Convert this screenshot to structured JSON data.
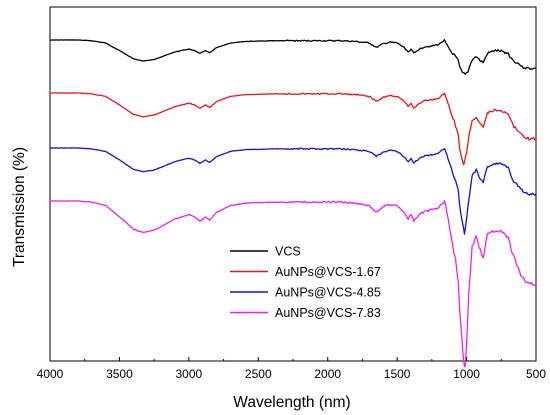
{
  "chart_data": {
    "type": "line",
    "title": "",
    "xlabel": "Wavelength (nm)",
    "ylabel": "Transmission (%)",
    "xlim": [
      4000,
      500
    ],
    "x_reversed": true,
    "xticks": [
      "4000",
      "3500",
      "3000",
      "2500",
      "2000",
      "1500",
      "1000",
      "500"
    ],
    "y_tick_labels": false,
    "grid": false,
    "legend_position": "lower-center",
    "series": [
      {
        "name": "VCS",
        "color": "#000000",
        "points": [
          [
            4000,
            22
          ],
          [
            3900,
            22
          ],
          [
            3800,
            22
          ],
          [
            3700,
            21.5
          ],
          [
            3600,
            20
          ],
          [
            3500,
            15
          ],
          [
            3400,
            9.5
          ],
          [
            3330,
            8
          ],
          [
            3250,
            9
          ],
          [
            3100,
            14
          ],
          [
            3000,
            16
          ],
          [
            2960,
            15
          ],
          [
            2920,
            13
          ],
          [
            2900,
            14
          ],
          [
            2880,
            15
          ],
          [
            2850,
            13.5
          ],
          [
            2800,
            17
          ],
          [
            2700,
            20
          ],
          [
            2600,
            21
          ],
          [
            2400,
            21.5
          ],
          [
            2200,
            21.5
          ],
          [
            2100,
            21.5
          ],
          [
            2000,
            21.5
          ],
          [
            1900,
            21.5
          ],
          [
            1800,
            21
          ],
          [
            1700,
            20
          ],
          [
            1650,
            17
          ],
          [
            1600,
            19.5
          ],
          [
            1550,
            20.5
          ],
          [
            1500,
            20
          ],
          [
            1450,
            17
          ],
          [
            1420,
            14
          ],
          [
            1400,
            16
          ],
          [
            1380,
            13
          ],
          [
            1340,
            16
          ],
          [
            1300,
            17.5
          ],
          [
            1250,
            18
          ],
          [
            1200,
            19
          ],
          [
            1160,
            22
          ],
          [
            1150,
            20
          ],
          [
            1110,
            14
          ],
          [
            1080,
            11
          ],
          [
            1060,
            8
          ],
          [
            1050,
            4
          ],
          [
            1030,
            0
          ],
          [
            1010,
            -1
          ],
          [
            990,
            1
          ],
          [
            960,
            9
          ],
          [
            930,
            11
          ],
          [
            900,
            8
          ],
          [
            880,
            7
          ],
          [
            850,
            13
          ],
          [
            800,
            15
          ],
          [
            750,
            14.5
          ],
          [
            700,
            13
          ],
          [
            680,
            10
          ],
          [
            660,
            8
          ],
          [
            640,
            7
          ],
          [
            620,
            6
          ],
          [
            600,
            4
          ],
          [
            550,
            3
          ],
          [
            500,
            3
          ]
        ]
      },
      {
        "name": "AuNPs@VCS-1.67",
        "color": "#e8161b",
        "points": [
          [
            4000,
            22
          ],
          [
            3900,
            22
          ],
          [
            3800,
            22
          ],
          [
            3700,
            21.5
          ],
          [
            3600,
            20
          ],
          [
            3500,
            15
          ],
          [
            3400,
            9.5
          ],
          [
            3330,
            8
          ],
          [
            3250,
            9
          ],
          [
            3100,
            14
          ],
          [
            3000,
            16
          ],
          [
            2960,
            15
          ],
          [
            2920,
            13
          ],
          [
            2900,
            14
          ],
          [
            2880,
            15
          ],
          [
            2850,
            13.5
          ],
          [
            2800,
            17
          ],
          [
            2700,
            20
          ],
          [
            2600,
            21
          ],
          [
            2400,
            21.5
          ],
          [
            2200,
            21.5
          ],
          [
            2100,
            21.5
          ],
          [
            2000,
            21.5
          ],
          [
            1900,
            21.5
          ],
          [
            1800,
            21
          ],
          [
            1700,
            20
          ],
          [
            1650,
            17
          ],
          [
            1600,
            19.5
          ],
          [
            1550,
            20.5
          ],
          [
            1500,
            20
          ],
          [
            1450,
            17
          ],
          [
            1420,
            14
          ],
          [
            1400,
            16
          ],
          [
            1380,
            13
          ],
          [
            1340,
            16
          ],
          [
            1300,
            17.5
          ],
          [
            1250,
            18
          ],
          [
            1200,
            19
          ],
          [
            1160,
            22
          ],
          [
            1150,
            20
          ],
          [
            1110,
            10
          ],
          [
            1080,
            3
          ],
          [
            1060,
            -3
          ],
          [
            1050,
            -10
          ],
          [
            1030,
            -18
          ],
          [
            1020,
            -20
          ],
          [
            1000,
            -13
          ],
          [
            980,
            -2
          ],
          [
            960,
            6
          ],
          [
            930,
            8
          ],
          [
            900,
            4
          ],
          [
            880,
            2
          ],
          [
            850,
            10
          ],
          [
            800,
            12
          ],
          [
            750,
            11.5
          ],
          [
            700,
            10
          ],
          [
            680,
            6
          ],
          [
            660,
            2
          ],
          [
            640,
            1
          ],
          [
            620,
            -1
          ],
          [
            600,
            -3
          ],
          [
            550,
            -5
          ],
          [
            500,
            -5
          ]
        ]
      },
      {
        "name": "AuNPs@VCS-4.85",
        "color": "#1414c8",
        "points": [
          [
            4000,
            22
          ],
          [
            3900,
            22
          ],
          [
            3800,
            22
          ],
          [
            3700,
            21.5
          ],
          [
            3600,
            20
          ],
          [
            3500,
            15
          ],
          [
            3400,
            9.5
          ],
          [
            3330,
            8
          ],
          [
            3250,
            9
          ],
          [
            3100,
            14
          ],
          [
            3000,
            16
          ],
          [
            2960,
            15
          ],
          [
            2920,
            13
          ],
          [
            2900,
            14
          ],
          [
            2880,
            15
          ],
          [
            2850,
            13.5
          ],
          [
            2800,
            17
          ],
          [
            2700,
            20
          ],
          [
            2600,
            21
          ],
          [
            2400,
            21.5
          ],
          [
            2200,
            21.5
          ],
          [
            2100,
            21.5
          ],
          [
            2000,
            21.5
          ],
          [
            1900,
            21.5
          ],
          [
            1800,
            21
          ],
          [
            1700,
            20
          ],
          [
            1650,
            17
          ],
          [
            1600,
            19.5
          ],
          [
            1550,
            20.5
          ],
          [
            1500,
            20
          ],
          [
            1450,
            17
          ],
          [
            1420,
            14
          ],
          [
            1400,
            16
          ],
          [
            1380,
            13
          ],
          [
            1340,
            16
          ],
          [
            1300,
            17.5
          ],
          [
            1250,
            18
          ],
          [
            1200,
            19
          ],
          [
            1160,
            22
          ],
          [
            1150,
            20
          ],
          [
            1110,
            10
          ],
          [
            1080,
            3
          ],
          [
            1060,
            -3
          ],
          [
            1050,
            -12
          ],
          [
            1030,
            -22
          ],
          [
            1015,
            -28
          ],
          [
            1000,
            -20
          ],
          [
            980,
            -6
          ],
          [
            960,
            6
          ],
          [
            930,
            9
          ],
          [
            900,
            4
          ],
          [
            880,
            2
          ],
          [
            850,
            11
          ],
          [
            800,
            13
          ],
          [
            750,
            12.5
          ],
          [
            700,
            11
          ],
          [
            680,
            6
          ],
          [
            660,
            2
          ],
          [
            640,
            1
          ],
          [
            620,
            -1
          ],
          [
            600,
            -3
          ],
          [
            550,
            -5
          ],
          [
            500,
            -5
          ]
        ]
      },
      {
        "name": "AuNPs@VCS-7.83",
        "color": "#ee22ee",
        "points": [
          [
            4000,
            22
          ],
          [
            3900,
            22
          ],
          [
            3800,
            22
          ],
          [
            3700,
            21.5
          ],
          [
            3600,
            20
          ],
          [
            3500,
            15
          ],
          [
            3400,
            9.5
          ],
          [
            3330,
            8
          ],
          [
            3250,
            9
          ],
          [
            3100,
            14
          ],
          [
            3000,
            16
          ],
          [
            2960,
            15
          ],
          [
            2920,
            13
          ],
          [
            2900,
            14
          ],
          [
            2880,
            15
          ],
          [
            2850,
            13.5
          ],
          [
            2800,
            17
          ],
          [
            2700,
            20
          ],
          [
            2600,
            21
          ],
          [
            2400,
            21.5
          ],
          [
            2200,
            21.5
          ],
          [
            2100,
            21.5
          ],
          [
            2000,
            21.5
          ],
          [
            1900,
            21.5
          ],
          [
            1800,
            21
          ],
          [
            1700,
            20
          ],
          [
            1650,
            17
          ],
          [
            1600,
            19.5
          ],
          [
            1550,
            20.5
          ],
          [
            1500,
            20
          ],
          [
            1450,
            17
          ],
          [
            1420,
            14
          ],
          [
            1400,
            16
          ],
          [
            1380,
            13
          ],
          [
            1340,
            16
          ],
          [
            1300,
            17.5
          ],
          [
            1250,
            18
          ],
          [
            1200,
            19
          ],
          [
            1160,
            22
          ],
          [
            1150,
            20
          ],
          [
            1110,
            6
          ],
          [
            1080,
            -4
          ],
          [
            1060,
            -14
          ],
          [
            1050,
            -26
          ],
          [
            1035,
            -38
          ],
          [
            1020,
            -50
          ],
          [
            1010,
            -52
          ],
          [
            1000,
            -42
          ],
          [
            985,
            -20
          ],
          [
            960,
            2
          ],
          [
            930,
            6
          ],
          [
            900,
            0
          ],
          [
            880,
            -3
          ],
          [
            850,
            8
          ],
          [
            800,
            9
          ],
          [
            750,
            8.5
          ],
          [
            700,
            6
          ],
          [
            680,
            1
          ],
          [
            660,
            -3
          ],
          [
            640,
            -6
          ],
          [
            620,
            -9
          ],
          [
            600,
            -12
          ],
          [
            550,
            -15
          ],
          [
            500,
            -15
          ]
        ]
      }
    ]
  }
}
